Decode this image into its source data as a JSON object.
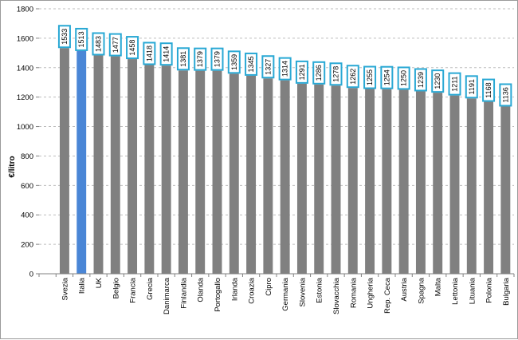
{
  "chart_data": {
    "type": "bar",
    "title": "",
    "xlabel": "",
    "ylabel": "€/litro",
    "ylim": [
      0,
      1800
    ],
    "yticks": [
      0,
      200,
      400,
      600,
      800,
      1000,
      1200,
      1400,
      1600,
      1800
    ],
    "grid": true,
    "categories": [
      "",
      "Svezia",
      "Italia",
      "UK",
      "Belgio",
      "Francia",
      "Grecia",
      "Danimarca",
      "Finlandia",
      "Olanda",
      "Portogallo",
      "Irlanda",
      "Croazia",
      "Cipro",
      "Germania",
      "Slovenia",
      "Estonia",
      "Slovacchia",
      "Romania",
      "Ungheria",
      "Rep. Ceca",
      "Austria",
      "Spagna",
      "Malta",
      "Lettonia",
      "Lituania",
      "Polonia",
      "Bulgaria"
    ],
    "values": [
      null,
      1533,
      1513,
      1483,
      1477,
      1458,
      1418,
      1414,
      1381,
      1379,
      1379,
      1359,
      1345,
      1327,
      1314,
      1291,
      1286,
      1278,
      1262,
      1255,
      1254,
      1250,
      1239,
      1230,
      1211,
      1191,
      1168,
      1136
    ],
    "colors": {
      "default": "#808080",
      "highlight": "#4a86d6",
      "label_border": "#29a8d4",
      "grid": "#bdbdbd"
    },
    "highlight_category": "Italia"
  }
}
